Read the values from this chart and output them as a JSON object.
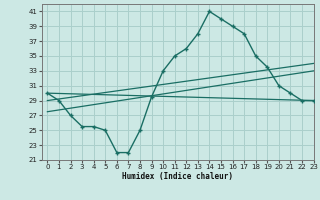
{
  "bg_color": "#cce8e4",
  "grid_color": "#aacfcb",
  "line_color": "#1a6e64",
  "xlim": [
    -0.5,
    23
  ],
  "ylim": [
    21,
    42
  ],
  "yticks": [
    21,
    23,
    25,
    27,
    29,
    31,
    33,
    35,
    37,
    39,
    41
  ],
  "xticks": [
    0,
    1,
    2,
    3,
    4,
    5,
    6,
    7,
    8,
    9,
    10,
    11,
    12,
    13,
    14,
    15,
    16,
    17,
    18,
    19,
    20,
    21,
    22,
    23
  ],
  "xlabel": "Humidex (Indice chaleur)",
  "zigzag_x": [
    0,
    1,
    2,
    3,
    4,
    5,
    6,
    7,
    8,
    9,
    10,
    11,
    12,
    13,
    14,
    15,
    16,
    17,
    18,
    19,
    20,
    21,
    22,
    23
  ],
  "zigzag_y": [
    30,
    29,
    27,
    25.5,
    25.5,
    25,
    22,
    22,
    25,
    29.5,
    33,
    35,
    36,
    38,
    41,
    40,
    39,
    38,
    35,
    33.5,
    31,
    30,
    29,
    29
  ],
  "line1_x": [
    0,
    23
  ],
  "line1_y": [
    30,
    29
  ],
  "line2_x": [
    0,
    23
  ],
  "line2_y": [
    29,
    34
  ],
  "line3_x": [
    0,
    23
  ],
  "line3_y": [
    27.5,
    33
  ]
}
